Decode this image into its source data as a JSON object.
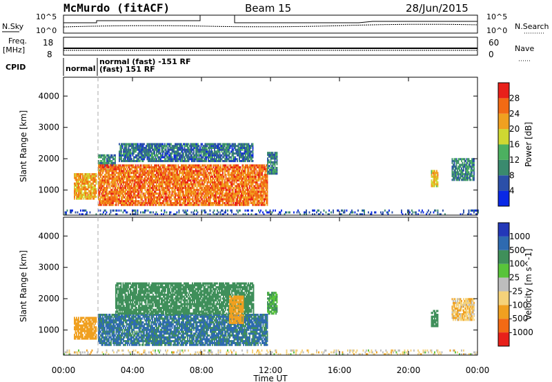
{
  "header": {
    "station": "McMurdo (fitACF)",
    "beam": "Beam 15",
    "date": "28/Jun/2015"
  },
  "status_panel": {
    "nsky_label": "N.Sky",
    "nsky_ticks": [
      "10^5",
      "10^0"
    ],
    "nsearch_label": "N.Search",
    "nsearch_ticks": [
      "10^5",
      "10^0"
    ],
    "freq_label": "Freq.",
    "freq_unit": "[MHz]",
    "freq_ticks": [
      "18",
      "8"
    ],
    "nave_label": "Nave",
    "nave_ticks": [
      "60",
      "0"
    ],
    "cpid_label": "CPID",
    "cpid_entries": [
      {
        "time": 0.0,
        "text": "normal"
      },
      {
        "time": 2.0,
        "text": "normal (fast) -151 RF"
      },
      {
        "time": 2.0,
        "text": "(fast) 151 RF"
      }
    ]
  },
  "colors": {
    "power_scale": [
      "#0a28e6",
      "#2b4fa8",
      "#3a8a6e",
      "#4cb060",
      "#cfd832",
      "#f0a020",
      "#f26a14",
      "#e8201a"
    ],
    "velocity_scale": [
      "#e8201a",
      "#f26a14",
      "#f0a020",
      "#f5d27a",
      "#bdbdbd",
      "#58c43a",
      "#3f8f5a",
      "#2e6ab0",
      "#2338b8"
    ]
  },
  "chart_data": [
    {
      "type": "heatmap",
      "title": "Power",
      "ylabel": "Slant Range [km]",
      "xlabel": "Time UT",
      "x_ticks": [
        "00:00",
        "04:00",
        "08:00",
        "12:00",
        "16:00",
        "20:00",
        "00:00"
      ],
      "xlim": [
        0,
        24
      ],
      "ylim": [
        200,
        4600
      ],
      "y_ticks": [
        1000,
        2000,
        3000,
        4000
      ],
      "colorbar": {
        "label": "Power [dB]",
        "ticks": [
          4,
          8,
          12,
          16,
          20,
          24,
          28
        ],
        "range": [
          0,
          32
        ]
      },
      "cpid_change_marker": 2.0,
      "regions": [
        {
          "t0": 0.6,
          "t1": 1.9,
          "r0": 700,
          "r1": 1500,
          "value": 22
        },
        {
          "t0": 2.0,
          "t1": 3.0,
          "r0": 1600,
          "r1": 2100,
          "value": 10
        },
        {
          "t0": 2.0,
          "t1": 11.8,
          "r0": 500,
          "r1": 1800,
          "value": 25
        },
        {
          "t0": 3.2,
          "t1": 11.0,
          "r0": 1900,
          "r1": 2500,
          "value": 8
        },
        {
          "t0": 11.8,
          "t1": 12.4,
          "r0": 1500,
          "r1": 2200,
          "value": 10
        },
        {
          "t0": 21.3,
          "t1": 21.7,
          "r0": 1100,
          "r1": 1600,
          "value": 20
        },
        {
          "t0": 22.5,
          "t1": 23.8,
          "r0": 1300,
          "r1": 2000,
          "value": 10
        },
        {
          "t0": 0.0,
          "t1": 24.0,
          "r0": 200,
          "r1": 350,
          "value": 6
        }
      ]
    },
    {
      "type": "heatmap",
      "title": "Velocity",
      "ylabel": "Slant Range [km]",
      "xlabel": "Time UT",
      "x_ticks": [
        "00:00",
        "04:00",
        "08:00",
        "12:00",
        "16:00",
        "20:00",
        "00:00"
      ],
      "xlim": [
        0,
        24
      ],
      "ylim": [
        200,
        4600
      ],
      "y_ticks": [
        1000,
        2000,
        3000,
        4000
      ],
      "colorbar": {
        "label": "Velocity [m s^-1]",
        "ticks": [
          1000,
          500,
          100,
          25,
          -25,
          -100,
          -500,
          -1000
        ]
      },
      "cpid_change_marker": 2.0,
      "regions": [
        {
          "t0": 0.6,
          "t1": 1.9,
          "r0": 700,
          "r1": 1400,
          "value": -300
        },
        {
          "t0": 2.0,
          "t1": 11.8,
          "r0": 500,
          "r1": 1500,
          "value": 600
        },
        {
          "t0": 3.0,
          "t1": 11.0,
          "r0": 1500,
          "r1": 2500,
          "value": 200
        },
        {
          "t0": 9.6,
          "t1": 10.4,
          "r0": 1200,
          "r1": 2100,
          "value": -200
        },
        {
          "t0": 11.8,
          "t1": 12.4,
          "r0": 1500,
          "r1": 2200,
          "value": 100
        },
        {
          "t0": 21.3,
          "t1": 21.7,
          "r0": 1100,
          "r1": 1600,
          "value": 200
        },
        {
          "t0": 22.5,
          "t1": 23.8,
          "r0": 1300,
          "r1": 2000,
          "value": -80
        },
        {
          "t0": 0.0,
          "t1": 24.0,
          "r0": 200,
          "r1": 350,
          "value": -40
        }
      ]
    }
  ]
}
